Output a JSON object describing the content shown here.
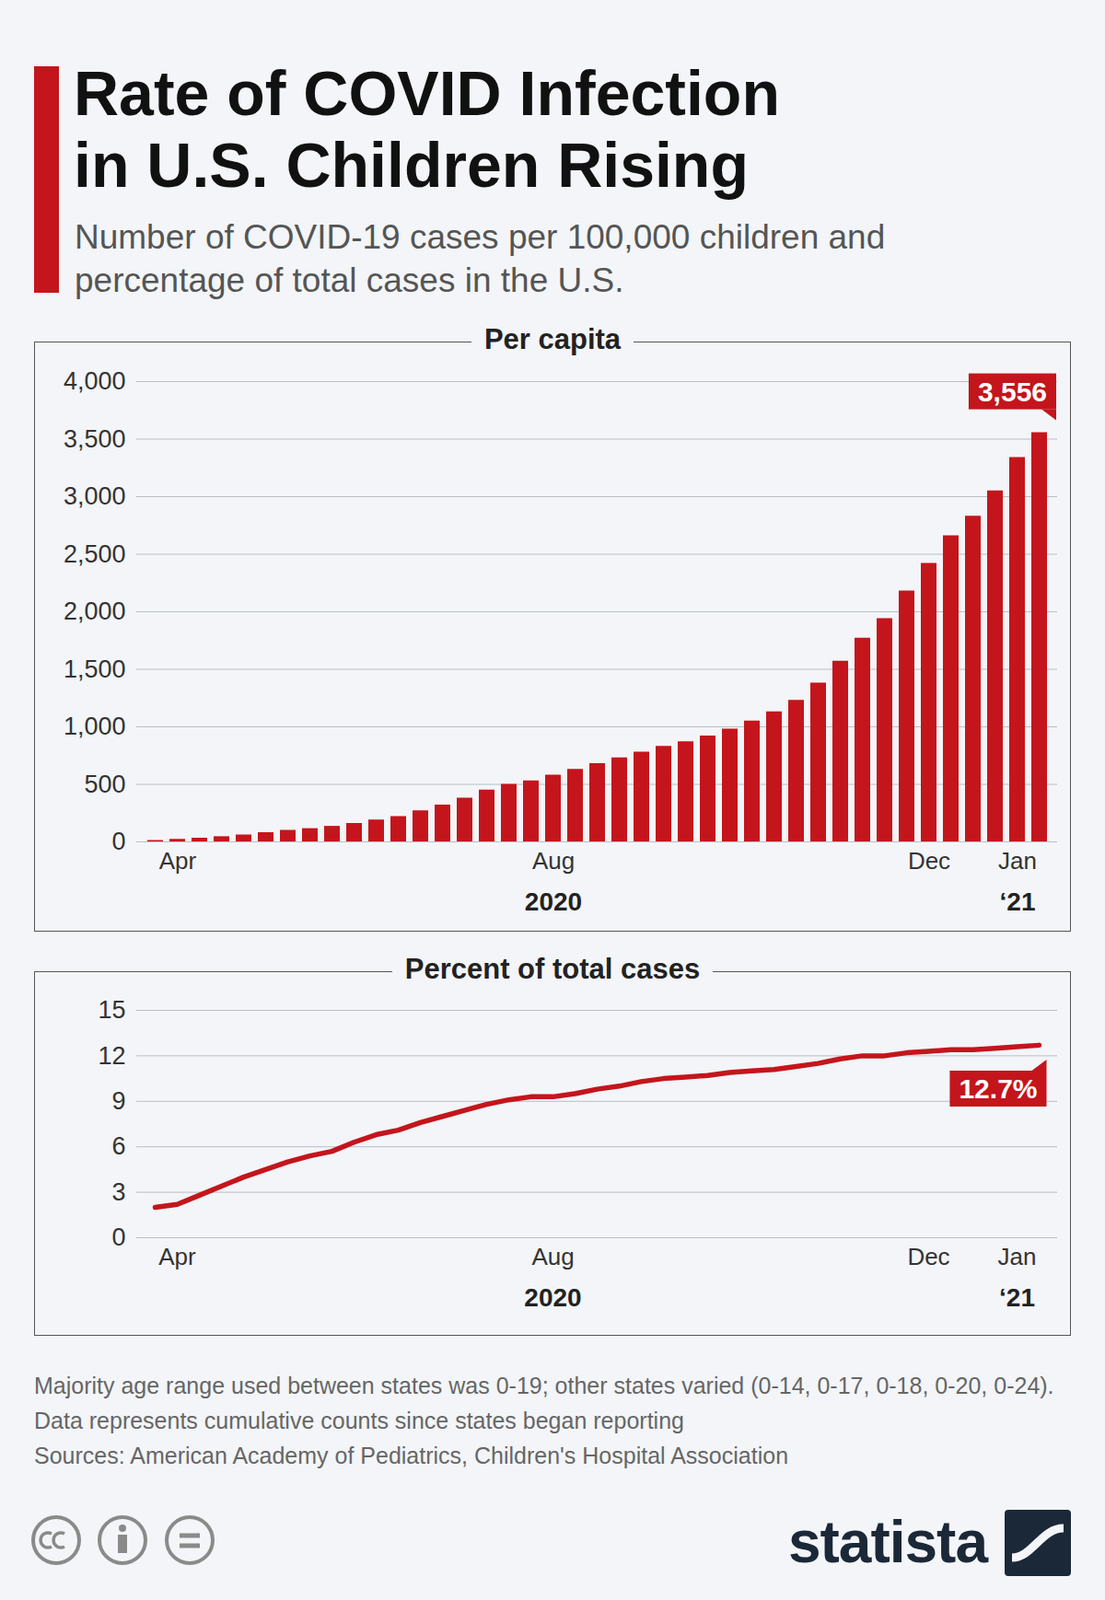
{
  "title": "Rate of COVID Infection in U.S. Children Rising",
  "subtitle": "Number of COVID-19 cases per 100,000 children and percentage of total cases in the U.S.",
  "notes": [
    "Majority age range used between states was 0-19; other states varied (0-14, 0-17, 0-18, 0-20, 0-24). Data represents cumulative counts since states began reporting",
    "Sources: American Academy of Pediatrics, Children's Hospital Association"
  ],
  "brand": "statista",
  "chart_data": [
    {
      "type": "bar",
      "title": "Per capita",
      "categories": [
        null,
        "Apr",
        null,
        null,
        null,
        null,
        null,
        null,
        null,
        null,
        null,
        null,
        null,
        null,
        null,
        null,
        null,
        null,
        "Aug",
        null,
        null,
        null,
        null,
        null,
        null,
        null,
        null,
        null,
        null,
        null,
        null,
        null,
        null,
        null,
        null,
        "Dec",
        null,
        null,
        null,
        "Jan",
        null
      ],
      "x_year_labels": [
        {
          "text": "2020",
          "at": "Aug"
        },
        {
          "text": "‘21",
          "at": "Jan"
        }
      ],
      "values": [
        12,
        22,
        32,
        45,
        60,
        80,
        100,
        115,
        135,
        160,
        190,
        220,
        270,
        320,
        380,
        450,
        500,
        530,
        580,
        630,
        680,
        730,
        780,
        830,
        870,
        920,
        980,
        1050,
        1130,
        1230,
        1380,
        1570,
        1770,
        1940,
        2180,
        2420,
        2660,
        2830,
        3050,
        3340,
        3556
      ],
      "value_labels": [
        null,
        null,
        null,
        null,
        null,
        null,
        null,
        null,
        null,
        null,
        null,
        null,
        null,
        null,
        null,
        null,
        null,
        null,
        null,
        null,
        null,
        null,
        null,
        null,
        null,
        null,
        null,
        null,
        null,
        null,
        null,
        null,
        null,
        null,
        null,
        null,
        null,
        null,
        null,
        null,
        "3,556"
      ],
      "data_labels": true,
      "color": "#c4151c",
      "ylim": [
        0,
        4000
      ],
      "yticks": [
        0,
        500,
        {
          "value": 1000,
          "label": "1,000"
        },
        {
          "value": 1500,
          "label": "1,500"
        },
        {
          "value": 2000,
          "label": "2,000"
        },
        {
          "value": 2500,
          "label": "2,500"
        },
        {
          "value": 3000,
          "label": "3,000"
        },
        {
          "value": 3500,
          "label": "3,500"
        },
        {
          "value": 4000,
          "label": "4,000"
        }
      ],
      "grid": true
    },
    {
      "type": "line",
      "title": "Percent of total cases",
      "categories": [
        null,
        "Apr",
        null,
        null,
        null,
        null,
        null,
        null,
        null,
        null,
        null,
        null,
        null,
        null,
        null,
        null,
        null,
        null,
        "Aug",
        null,
        null,
        null,
        null,
        null,
        null,
        null,
        null,
        null,
        null,
        null,
        null,
        null,
        null,
        null,
        null,
        "Dec",
        null,
        null,
        null,
        "Jan",
        null
      ],
      "x_year_labels": [
        {
          "text": "2020",
          "at": "Aug"
        },
        {
          "text": "‘21",
          "at": "Jan"
        }
      ],
      "values": [
        2.0,
        2.2,
        2.8,
        3.4,
        4.0,
        4.5,
        5.0,
        5.4,
        5.7,
        6.3,
        6.8,
        7.1,
        7.6,
        8.0,
        8.4,
        8.8,
        9.1,
        9.3,
        9.3,
        9.5,
        9.8,
        10.0,
        10.3,
        10.5,
        10.6,
        10.7,
        10.9,
        11.0,
        11.1,
        11.3,
        11.5,
        11.8,
        12.0,
        12.0,
        12.2,
        12.3,
        12.4,
        12.4,
        12.5,
        12.6,
        12.7
      ],
      "value_labels": [
        null,
        null,
        null,
        null,
        null,
        null,
        null,
        null,
        null,
        null,
        null,
        null,
        null,
        null,
        null,
        null,
        null,
        null,
        null,
        null,
        null,
        null,
        null,
        null,
        null,
        null,
        null,
        null,
        null,
        null,
        null,
        null,
        null,
        null,
        null,
        null,
        null,
        null,
        null,
        null,
        "12.7%"
      ],
      "data_labels": true,
      "color": "#c4151c",
      "ylim": [
        0,
        15
      ],
      "yticks": [
        0,
        3,
        6,
        9,
        12,
        15
      ],
      "grid": true
    }
  ]
}
